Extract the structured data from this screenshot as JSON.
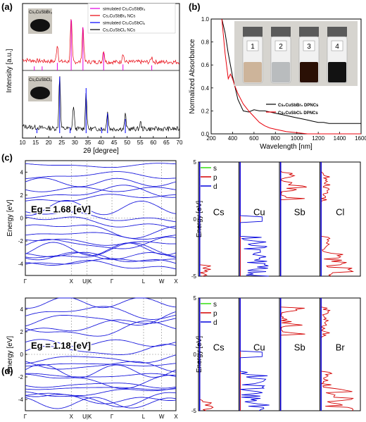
{
  "colors": {
    "red": "#e8000b",
    "black": "#000000",
    "blue": "#0000ff",
    "magenta": "#e000e0",
    "band": "#1a1add",
    "green": "#33dd11",
    "pdos_red": "#d40000",
    "pdos_blue": "#0000dd"
  },
  "panels": {
    "a": "(a)",
    "b": "(b)",
    "c": "(c)",
    "d": "(d)"
  },
  "chart_data": [
    {
      "type": "line",
      "panel": "(a)",
      "xlabel": "2θ [degree]",
      "ylabel": "Intensity [a.u.]",
      "xlim": [
        10,
        70
      ],
      "xticks": [
        "10",
        "15",
        "20",
        "25",
        "30",
        "35",
        "40",
        "45",
        "50",
        "55",
        "60",
        "65",
        "70"
      ],
      "legend": [
        "simulated Cs₂CuSbBr₆",
        "Cs₂CuSbBr₆ NCs",
        "simulated Cs₂CuSbCl₆",
        "Cs₂CuSbCl₆ NCs"
      ],
      "photo_labels": [
        "Cs₂CuSbBr₆",
        "Cs₂CuSbCl₆"
      ],
      "series": [
        {
          "name": "simulated Cs₂CuSbBr₆",
          "sticks": [
            [
              14.5,
              0.08
            ],
            [
              17.5,
              0.08
            ],
            [
              23.3,
              0.15
            ],
            [
              28.6,
              1.0
            ],
            [
              33.1,
              0.85
            ],
            [
              41.0,
              0.35
            ],
            [
              48.4,
              0.12
            ],
            [
              59.4,
              0.1
            ]
          ]
        },
        {
          "name": "Cs₂CuSbBr₆ NCs",
          "peaks": [
            [
              23.3,
              0.28
            ],
            [
              28.6,
              0.72
            ],
            [
              33.1,
              0.6
            ],
            [
              41.0,
              0.2
            ],
            [
              48.4,
              0.15
            ],
            [
              59.4,
              0.08
            ]
          ]
        },
        {
          "name": "simulated Cs₂CuSbCl₆",
          "sticks": [
            [
              15.5,
              0.08
            ],
            [
              24.2,
              1.0
            ],
            [
              28.2,
              0.1
            ],
            [
              34.3,
              0.8
            ],
            [
              40.3,
              0.1
            ],
            [
              42.5,
              0.35
            ],
            [
              49.3,
              0.25
            ]
          ]
        },
        {
          "name": "Cs₂CuSbCl₆ NCs",
          "peaks": [
            [
              24.2,
              0.82
            ],
            [
              29.5,
              0.35
            ],
            [
              34.3,
              0.55
            ],
            [
              42.5,
              0.28
            ],
            [
              49.3,
              0.22
            ],
            [
              55.1,
              0.1
            ]
          ]
        }
      ]
    },
    {
      "type": "line",
      "panel": "(b)",
      "xlabel": "Wavelength [nm]",
      "ylabel": "Normalized Absorbance",
      "xlim": [
        200,
        1600
      ],
      "ylim": [
        0.0,
        1.0
      ],
      "xticks": [
        "200",
        "400",
        "600",
        "800",
        "1000",
        "1200",
        "1400",
        "1600"
      ],
      "yticks": [
        "0.0",
        "0.2",
        "0.4",
        "0.6",
        "0.8",
        "1.0"
      ],
      "vial_labels": [
        "1",
        "2",
        "3",
        "4"
      ],
      "series": [
        {
          "name": "Cs₂CuSbBr₆ DPNCs",
          "x": [
            300,
            330,
            360,
            400,
            450,
            500,
            550,
            600,
            650,
            700,
            750,
            800,
            850,
            900,
            950,
            1000,
            1050,
            1100,
            1150,
            1200,
            1250,
            1300,
            1350,
            1400,
            1450,
            1500,
            1550,
            1600
          ],
          "y": [
            1.0,
            0.88,
            0.7,
            0.5,
            0.3,
            0.2,
            0.19,
            0.21,
            0.2,
            0.2,
            0.19,
            0.18,
            0.17,
            0.16,
            0.15,
            0.14,
            0.13,
            0.12,
            0.11,
            0.1,
            0.1,
            0.09,
            0.09,
            0.09,
            0.09,
            0.09,
            0.09,
            0.09
          ]
        },
        {
          "name": "Cs₂CuSbCl₆ DPNCs",
          "x": [
            300,
            330,
            360,
            380,
            400,
            420,
            450,
            500,
            550,
            600,
            650,
            700,
            750,
            800,
            850,
            900,
            1000,
            1100,
            1200,
            1300,
            1400,
            1500,
            1600
          ],
          "y": [
            1.0,
            0.7,
            0.48,
            0.52,
            0.48,
            0.42,
            0.35,
            0.26,
            0.2,
            0.15,
            0.1,
            0.07,
            0.05,
            0.04,
            0.03,
            0.02,
            0.01,
            0.0,
            0.0,
            0.0,
            0.0,
            0.0,
            0.0
          ]
        }
      ]
    },
    {
      "type": "line",
      "panel": "(c)",
      "ylabel": "Energy [eV]",
      "annotation": "Eg = 1.68 [eV]",
      "ylim": [
        -5,
        5
      ],
      "yticks": [
        "4",
        "2",
        "0",
        "-2",
        "-4"
      ],
      "kpoints": [
        "Γ",
        "X",
        "U|K",
        "Γ",
        "L",
        "W",
        "X"
      ]
    },
    {
      "type": "line",
      "panel": "(d)",
      "ylabel": "Energy [eV]",
      "annotation": "Eg = 1.18 [eV]",
      "ylim": [
        -5,
        5
      ],
      "yticks": [
        "4",
        "2",
        "0",
        "-2",
        "-4"
      ],
      "kpoints": [
        "Γ",
        "X",
        "U|K",
        "Γ",
        "L",
        "W",
        "X"
      ]
    },
    {
      "type": "line",
      "panel": "c-pdos",
      "ylabel": "Energy [eV]",
      "yticks": [
        "5",
        "0",
        "-5"
      ],
      "legend": [
        "s",
        "p",
        "d"
      ],
      "elements": [
        "Cs",
        "Cu",
        "Sb",
        "Cl"
      ]
    },
    {
      "type": "line",
      "panel": "d-pdos",
      "ylabel": "Energy [eV]",
      "yticks": [
        "5",
        "0",
        "-5"
      ],
      "legend": [
        "s",
        "p",
        "d"
      ],
      "elements": [
        "Cs",
        "Cu",
        "Sb",
        "Br"
      ]
    }
  ]
}
